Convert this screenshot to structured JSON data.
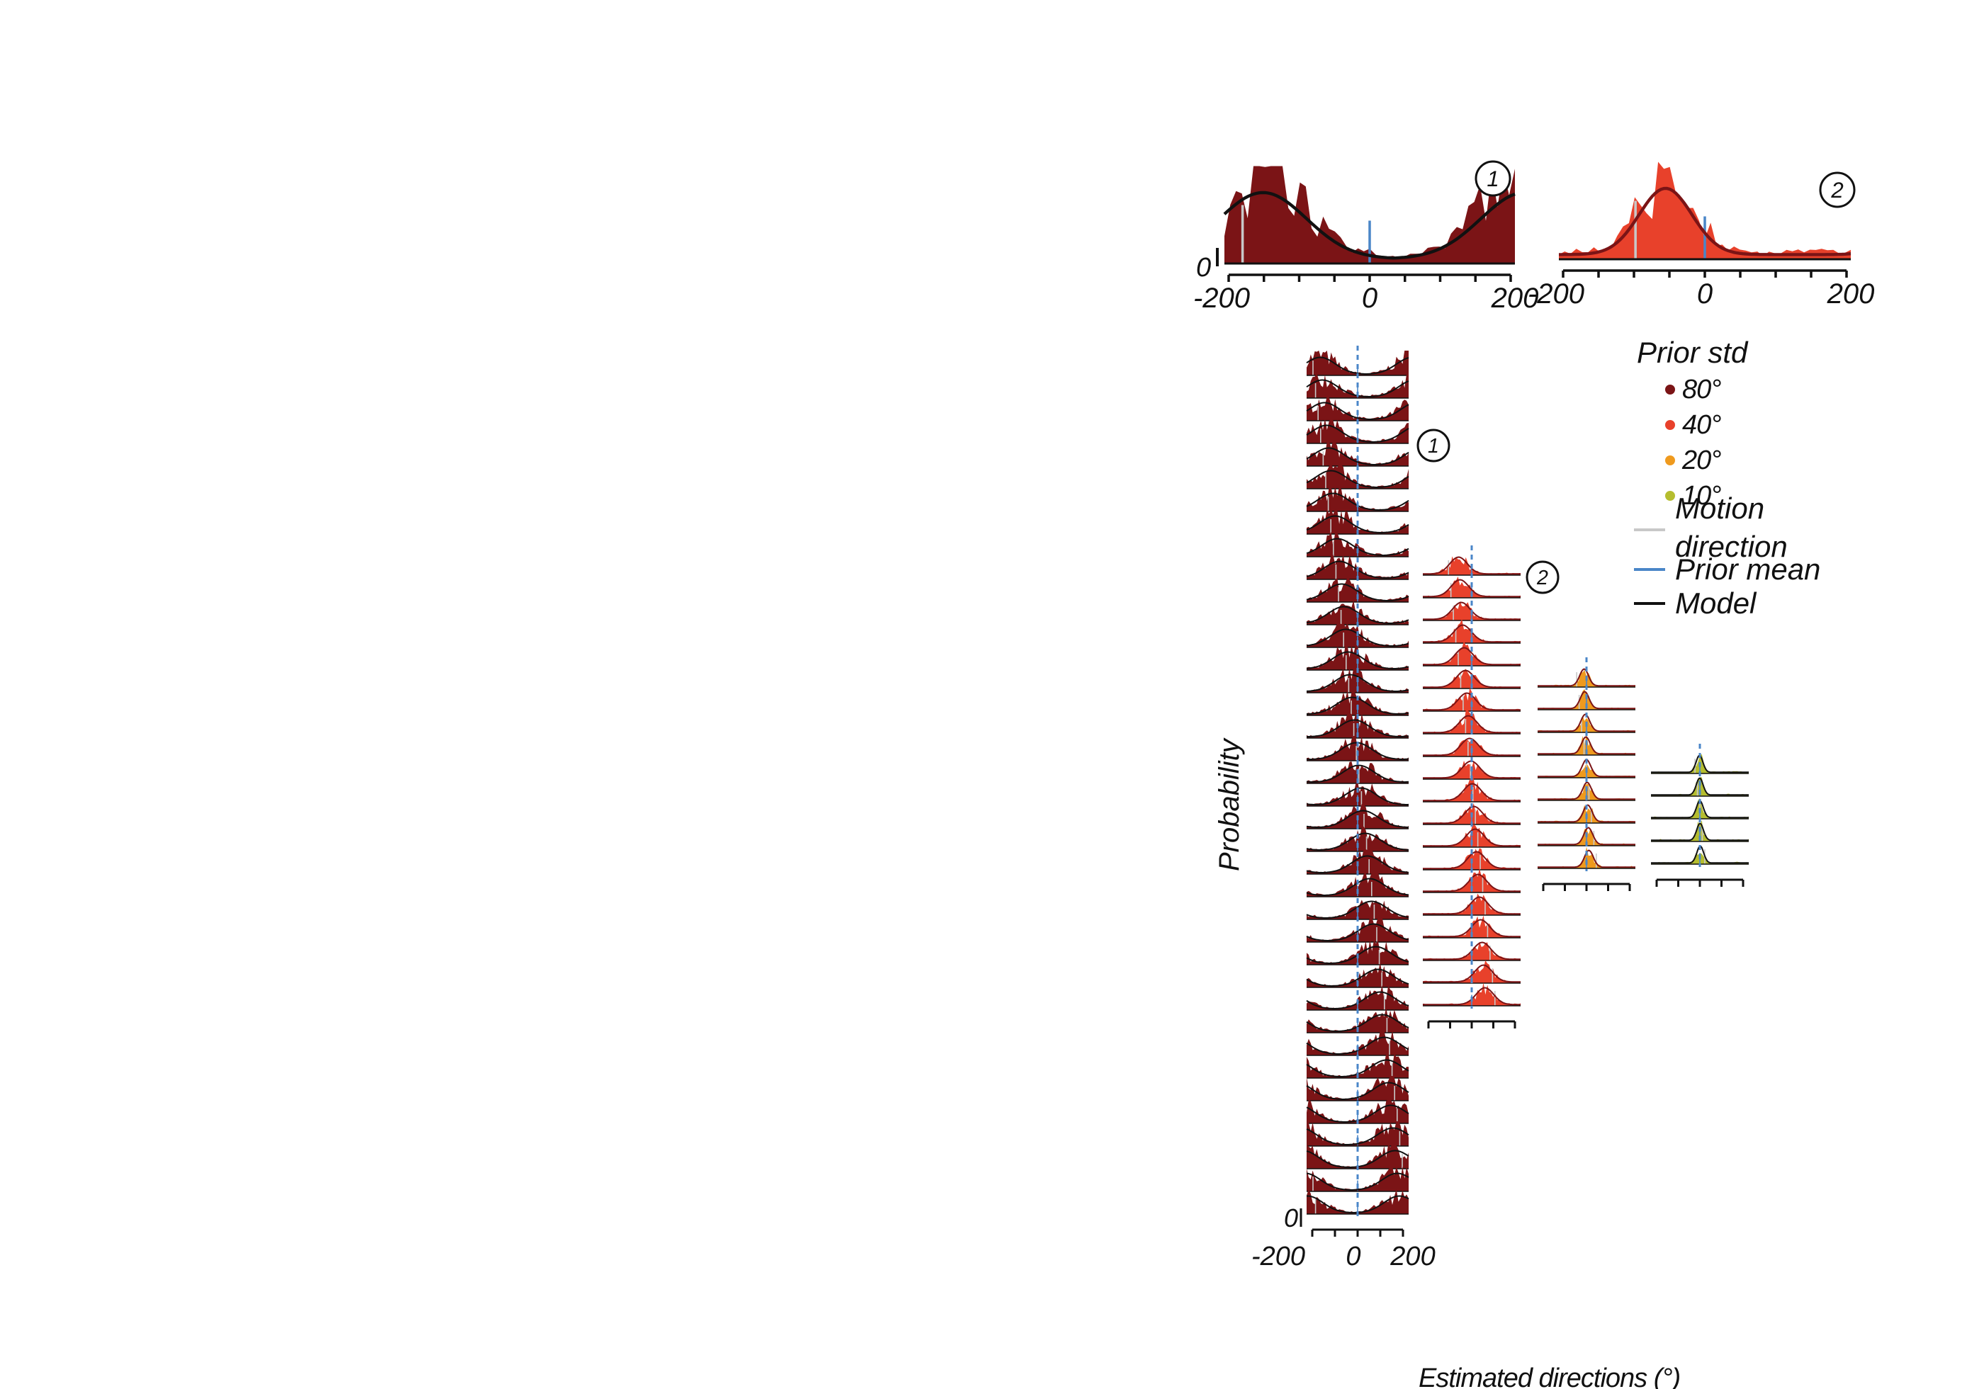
{
  "chart_data": {
    "type": "area",
    "xlabel": "Estimated directions (°)",
    "ylabel": "Probability",
    "x_ticks": [
      "-200",
      "0",
      "200"
    ],
    "y_zero_label": "0",
    "xlim": [
      -200,
      200
    ],
    "prior_mean": 0,
    "legend": {
      "title": "Prior std",
      "placement": "right",
      "items": [
        {
          "label": "80°",
          "color": "#7b1416",
          "kind": "dot"
        },
        {
          "label": "40°",
          "color": "#e8412b",
          "kind": "dot"
        },
        {
          "label": "20°",
          "color": "#ef9a1e",
          "kind": "dot"
        },
        {
          "label": "10°",
          "color": "#b5bd2f",
          "kind": "dot"
        },
        {
          "label": "Motion direction",
          "color": "#c8c8c8",
          "kind": "line"
        },
        {
          "label": "Prior mean",
          "color": "#4a86c8",
          "kind": "line"
        },
        {
          "label": "Model",
          "color": "#111111",
          "kind": "line"
        }
      ]
    },
    "groups": [
      {
        "prior_std": 80,
        "color": "#7b1416",
        "model_color": "#111111",
        "motion_directions": [
          -175,
          -165,
          -155,
          -145,
          -135,
          -125,
          -115,
          -105,
          -95,
          -85,
          -75,
          -65,
          -55,
          -45,
          -35,
          -25,
          -15,
          -5,
          5,
          15,
          25,
          35,
          45,
          55,
          65,
          75,
          85,
          95,
          105,
          115,
          125,
          135,
          145,
          155,
          165,
          175,
          185,
          195
        ]
      },
      {
        "prior_std": 40,
        "color": "#e8412b",
        "model_color": "#7b1416",
        "motion_directions": [
          -95,
          -85,
          -75,
          -65,
          -55,
          -45,
          -35,
          -25,
          -15,
          -5,
          5,
          15,
          25,
          35,
          45,
          55,
          65,
          75,
          85,
          95
        ]
      },
      {
        "prior_std": 20,
        "color": "#ef9a1e",
        "model_color": "#7b1416",
        "motion_directions": [
          -40,
          -30,
          -20,
          -10,
          0,
          10,
          20,
          30,
          40
        ]
      },
      {
        "prior_std": 10,
        "color": "#b5bd2f",
        "model_color": "#111111",
        "motion_directions": [
          -20,
          -10,
          0,
          10,
          20
        ]
      }
    ],
    "insets": [
      {
        "marker": "1",
        "prior_std": 80,
        "motion_direction": -175,
        "row_index": 3
      },
      {
        "marker": "2",
        "prior_std": 40,
        "motion_direction": -95,
        "row_index": 0
      }
    ]
  }
}
